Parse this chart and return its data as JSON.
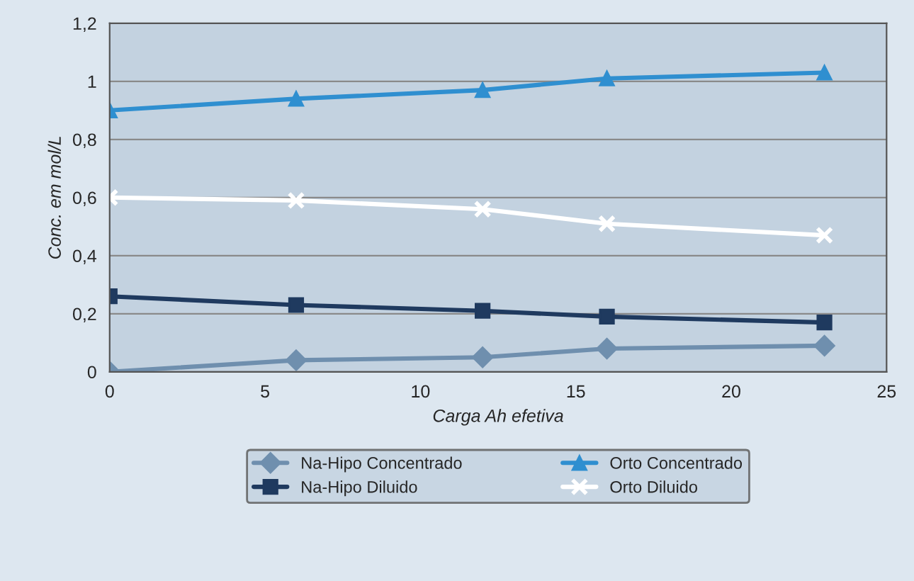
{
  "chart_data": {
    "type": "line",
    "xlabel": "Carga Ah efetiva",
    "ylabel": "Conc. em mol/L",
    "xlim": [
      0,
      25
    ],
    "xticks": [
      0,
      5,
      10,
      15,
      20,
      25
    ],
    "ylim": [
      0,
      1.2
    ],
    "yticks": [
      0,
      {
        "value": 0.2,
        "label": "0,2"
      },
      {
        "value": 0.4,
        "label": "0,4"
      },
      {
        "value": 0.6,
        "label": "0,6"
      },
      {
        "value": 0.8,
        "label": "0,8"
      },
      1,
      {
        "value": 1.2,
        "label": "1,2"
      }
    ],
    "grid": "y",
    "legend": "bottom",
    "line_style": "solid",
    "series": [
      {
        "name": "Na-Hipo Concentrado",
        "color": "#6f8fae",
        "marker": "diamond",
        "x": [
          0,
          6,
          12,
          16,
          23
        ],
        "values": [
          0,
          0.04,
          0.05,
          0.08,
          0.09
        ]
      },
      {
        "name": "Na-Hipo Diluido",
        "color": "#1f3a5f",
        "marker": "square",
        "x": [
          0,
          6,
          12,
          16,
          23
        ],
        "values": [
          0.26,
          0.23,
          0.21,
          0.19,
          0.17
        ]
      },
      {
        "name": "Orto Concentrado",
        "color": "#2f8fd0",
        "marker": "triangle",
        "x": [
          0,
          6,
          12,
          16,
          23
        ],
        "values": [
          0.9,
          0.94,
          0.97,
          1.01,
          1.03
        ]
      },
      {
        "name": "Orto Diluido",
        "color": "#ffffff",
        "marker": "cross",
        "x": [
          0,
          6,
          12,
          16,
          23
        ],
        "values": [
          0.6,
          0.59,
          0.56,
          0.51,
          0.47
        ]
      }
    ]
  }
}
